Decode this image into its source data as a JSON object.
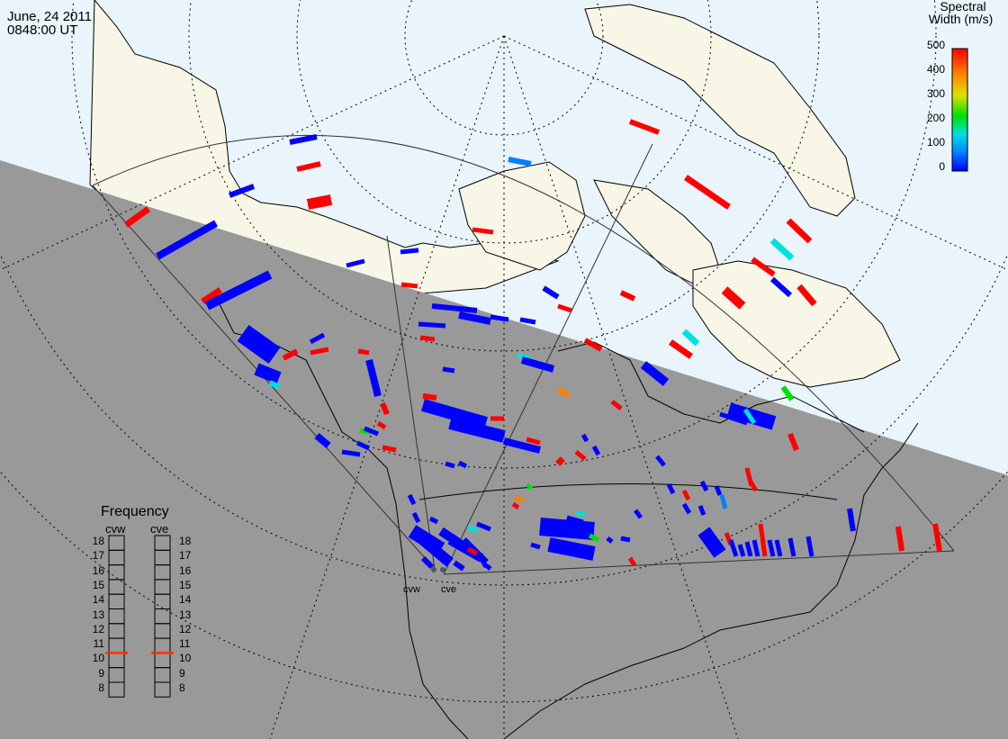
{
  "header": {
    "date": "June, 24 2011",
    "time": "0848:00 UT"
  },
  "colorbar": {
    "title_line1": "Spectral",
    "title_line2": "Width (m/s)",
    "ticks": [
      "500",
      "400",
      "300",
      "200",
      "100",
      "0"
    ],
    "range": [
      0,
      500
    ],
    "colors": [
      "#0000ff",
      "#0080ff",
      "#00e0e0",
      "#00e000",
      "#e0e000",
      "#ff8000",
      "#ff0000"
    ]
  },
  "frequency_panel": {
    "title": "Frequency",
    "radars": [
      {
        "name": "cvw",
        "value_mhz": 10.5
      },
      {
        "name": "cve",
        "value_mhz": 10.5
      }
    ],
    "scale": [
      "18",
      "17",
      "16",
      "15",
      "14",
      "13",
      "12",
      "11",
      "10",
      "9",
      "8"
    ],
    "marker_color": "#ff3000"
  },
  "radar_sites": [
    {
      "name": "cvw"
    },
    {
      "name": "cve"
    }
  ],
  "map": {
    "ocean_color": "#e9f4fb",
    "land_color": "#f8f6e6",
    "night_color": "#999999",
    "coast_color": "#000000"
  }
}
